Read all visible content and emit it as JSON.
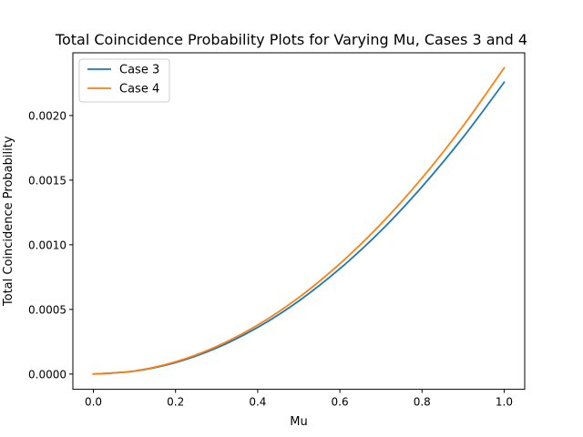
{
  "chart_data": {
    "type": "line",
    "title": "Total Coincidence Probability Plots for Varying Mu, Cases 3 and 4",
    "xlabel": "Mu",
    "ylabel": "Total Coincidence Probability",
    "xlim": [
      -0.05,
      1.05
    ],
    "ylim": [
      -0.000118,
      0.002485
    ],
    "xticks": [
      0.0,
      0.2,
      0.4,
      0.6,
      0.8,
      1.0
    ],
    "xtick_labels": [
      "0.0",
      "0.2",
      "0.4",
      "0.6",
      "0.8",
      "1.0"
    ],
    "yticks": [
      0.0,
      0.0005,
      0.001,
      0.0015,
      0.002
    ],
    "ytick_labels": [
      "0.0000",
      "0.0005",
      "0.0010",
      "0.0015",
      "0.0020"
    ],
    "grid": false,
    "legend_position": "top-left",
    "x": [
      0.0,
      0.1,
      0.2,
      0.3,
      0.4,
      0.5,
      0.6,
      0.7,
      0.8,
      0.9,
      1.0
    ],
    "series": [
      {
        "name": "Case 3",
        "color": "#1f77b4",
        "values": [
          0.0,
          2.26e-05,
          8.9e-05,
          0.000202,
          0.000361,
          0.000565,
          0.000815,
          0.001108,
          0.001449,
          0.001831,
          0.002257
        ]
      },
      {
        "name": "Case 4",
        "color": "#ff7f0e",
        "values": [
          0.0,
          2.38e-05,
          9.5e-05,
          0.000213,
          0.000379,
          0.000592,
          0.000853,
          0.001161,
          0.001516,
          0.001919,
          0.002369
        ]
      }
    ]
  }
}
